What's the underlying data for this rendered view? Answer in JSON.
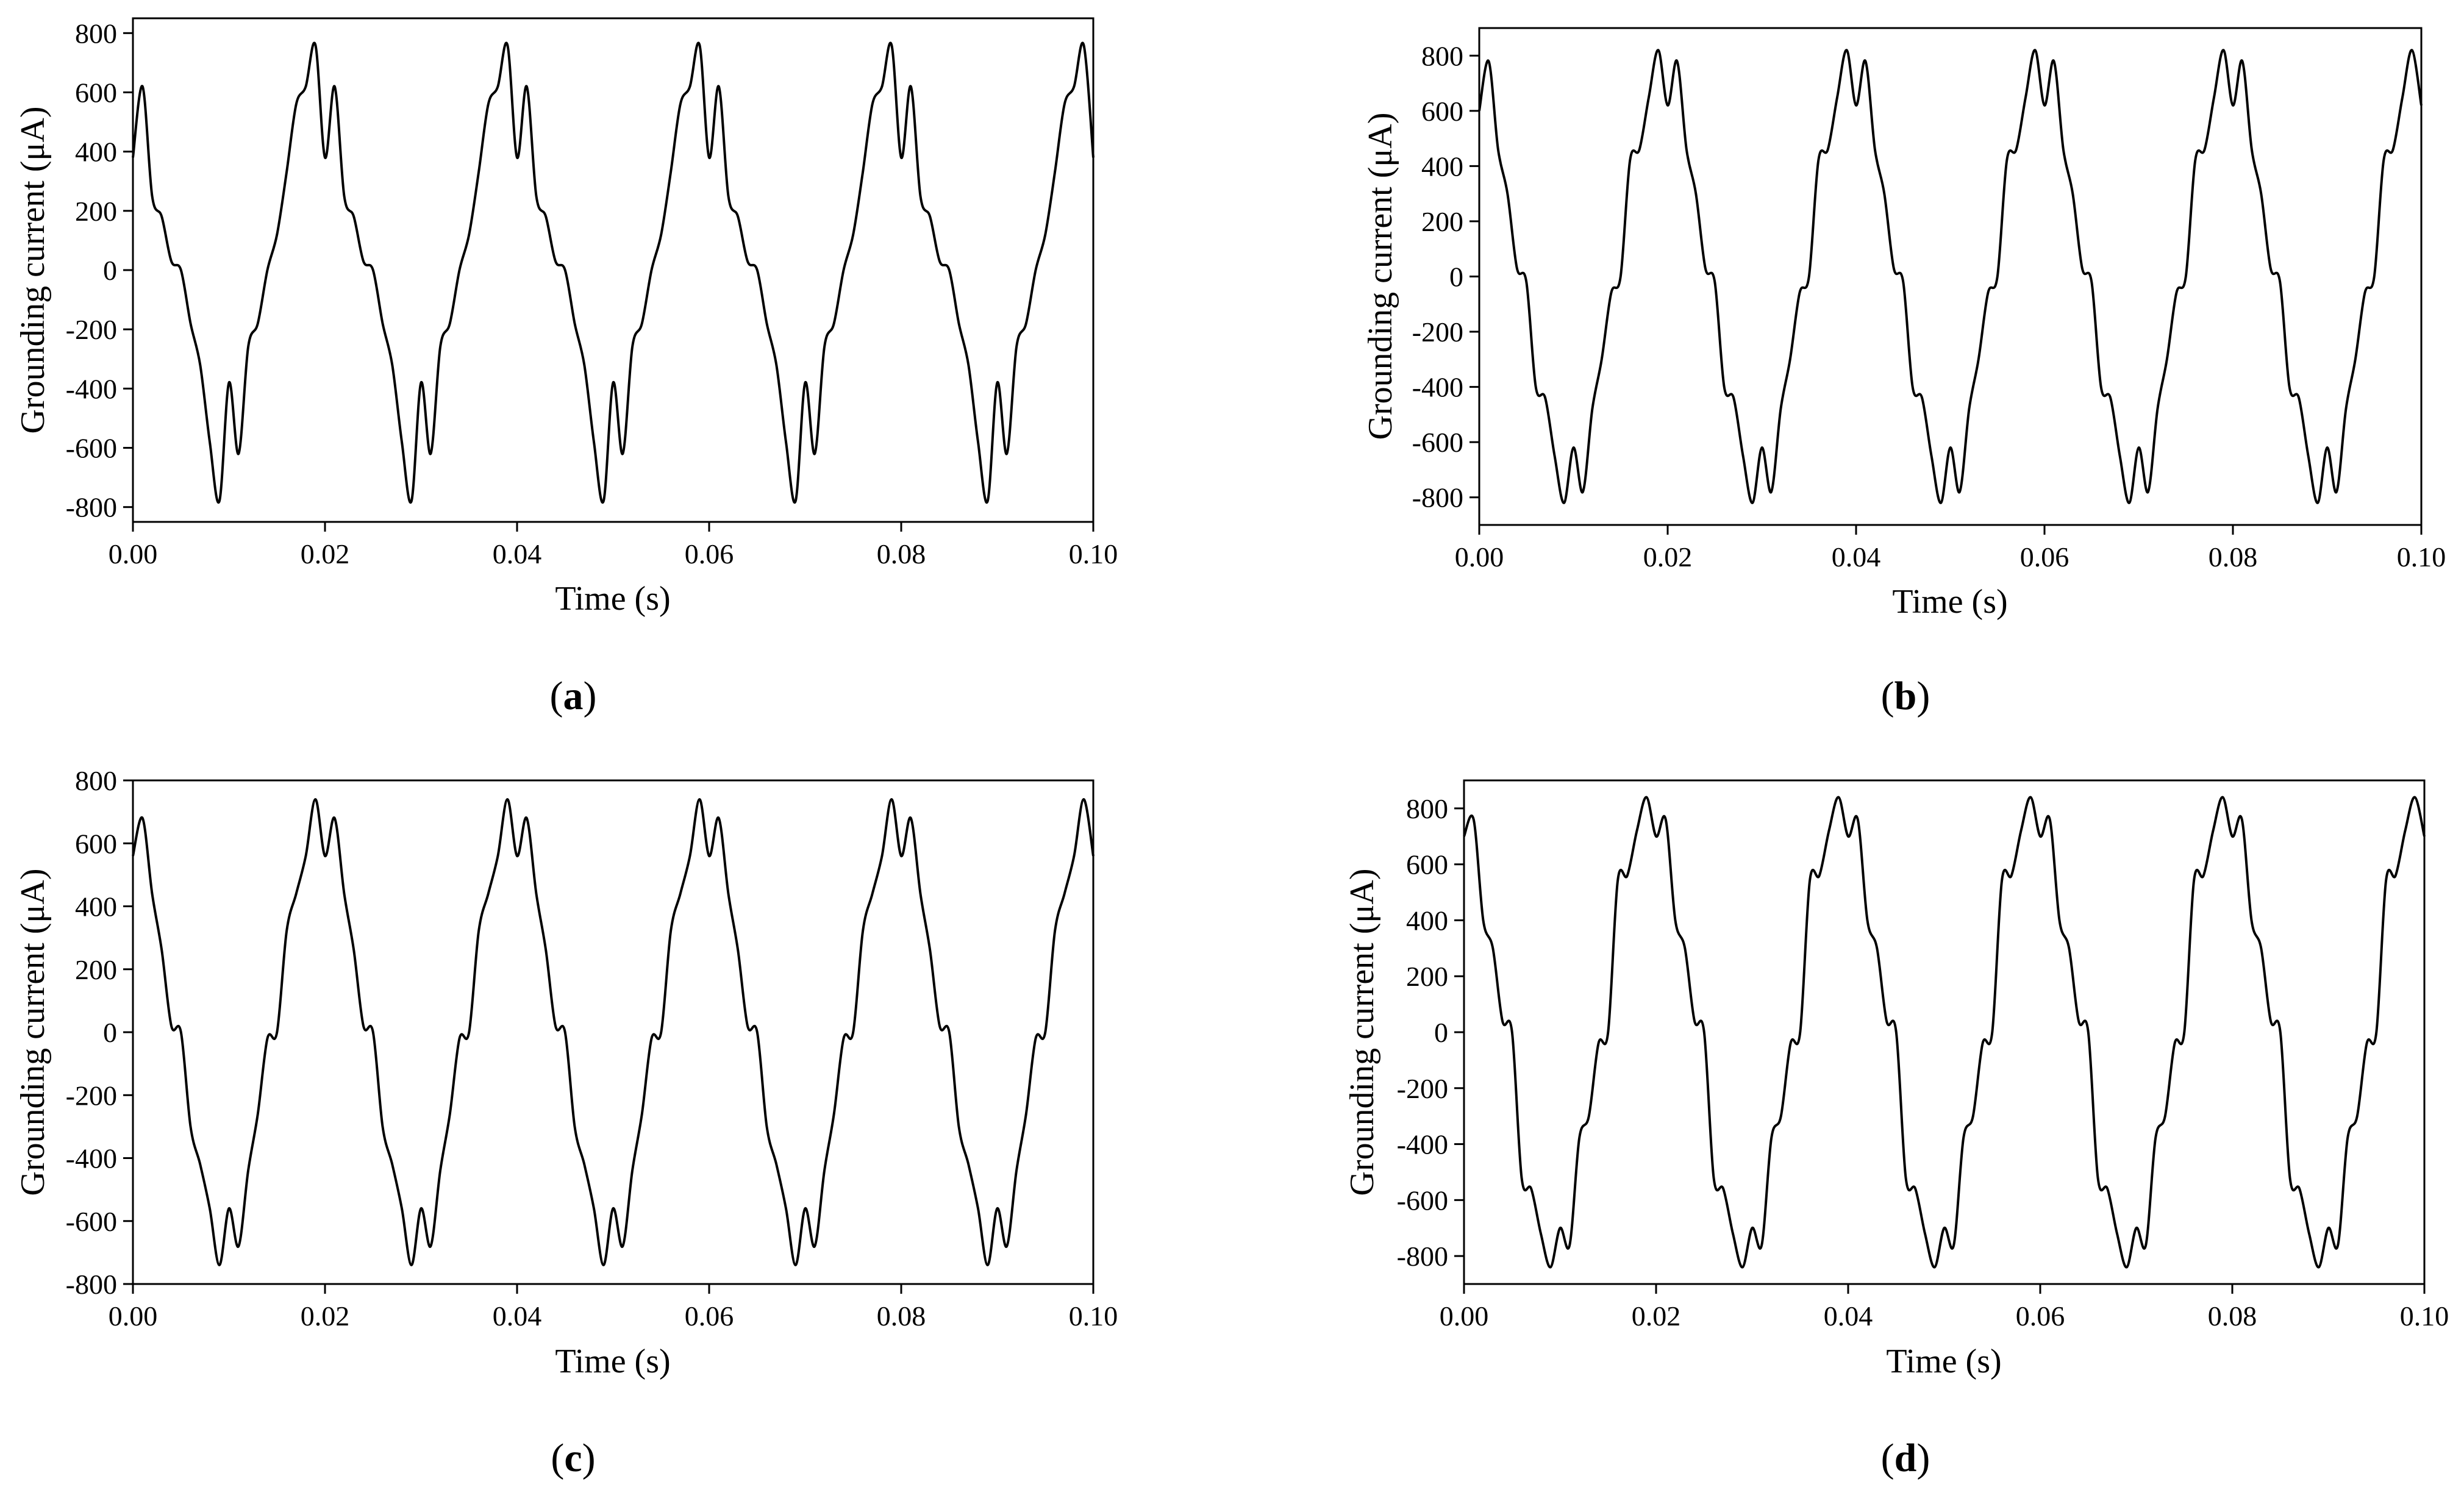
{
  "figure": {
    "panel_labels": [
      {
        "open": "(",
        "letter": "a",
        "close": ")"
      },
      {
        "open": "(",
        "letter": "b",
        "close": ")"
      },
      {
        "open": "(",
        "letter": "c",
        "close": ")"
      },
      {
        "open": "(",
        "letter": "d",
        "close": ")"
      }
    ]
  },
  "chart_data": [
    {
      "type": "line",
      "panel": "a",
      "xlabel": "Time (s)",
      "ylabel": "Grounding current (μA)",
      "xlim": [
        0,
        0.1
      ],
      "ylim": [
        -850,
        850
      ],
      "xticks": [
        "0.00",
        "0.02",
        "0.04",
        "0.06",
        "0.08",
        "0.10"
      ],
      "yticks": [
        "-800",
        "-600",
        "-400",
        "-200",
        "0",
        "200",
        "400",
        "600",
        "800"
      ],
      "grid": false,
      "legend": "none",
      "line_color": "#000000",
      "series": [
        {
          "name": "",
          "x": [
            0.0,
            0.001,
            0.002,
            0.003,
            0.004,
            0.005,
            0.006,
            0.007,
            0.008,
            0.009,
            0.01,
            0.011,
            0.012,
            0.013,
            0.014,
            0.015,
            0.016,
            0.017,
            0.018,
            0.019,
            0.02
          ],
          "y": [
            380,
            620,
            250,
            180,
            30,
            0,
            -180,
            -320,
            -580,
            -780,
            -380,
            -620,
            -260,
            -180,
            0,
            120,
            330,
            560,
            620,
            760,
            380
          ],
          "periodic": true,
          "period": 0.02,
          "harmonics": "50 Hz fundamental with high-frequency ripple near peaks"
        }
      ]
    },
    {
      "type": "line",
      "panel": "b",
      "xlabel": "Time (s)",
      "ylabel": "Grounding current (μA)",
      "xlim": [
        0,
        0.1
      ],
      "ylim": [
        -900,
        900
      ],
      "xticks": [
        "0.00",
        "0.02",
        "0.04",
        "0.06",
        "0.08",
        "0.10"
      ],
      "yticks": [
        "-800",
        "-600",
        "-400",
        "-200",
        "0",
        "200",
        "400",
        "600",
        "800"
      ],
      "grid": false,
      "legend": "none",
      "line_color": "#000000",
      "series": [
        {
          "name": "",
          "x": [
            0.0,
            0.001,
            0.002,
            0.003,
            0.004,
            0.005,
            0.006,
            0.007,
            0.008,
            0.009,
            0.01,
            0.011,
            0.012,
            0.013,
            0.014,
            0.015,
            0.016,
            0.017,
            0.018,
            0.019,
            0.02
          ],
          "y": [
            600,
            780,
            460,
            300,
            30,
            -20,
            -400,
            -440,
            -650,
            -820,
            -620,
            -780,
            -480,
            -300,
            -60,
            0,
            420,
            460,
            650,
            820,
            620
          ],
          "periodic": true,
          "period": 0.02,
          "harmonics": "50 Hz fundamental with ripple near peaks"
        }
      ]
    },
    {
      "type": "line",
      "panel": "c",
      "xlabel": "Time (s)",
      "ylabel": "Grounding current (μA)",
      "xlim": [
        0,
        0.1
      ],
      "ylim": [
        -800,
        800
      ],
      "xticks": [
        "0.00",
        "0.02",
        "0.04",
        "0.06",
        "0.08",
        "0.10"
      ],
      "yticks": [
        "-800",
        "-600",
        "-400",
        "-200",
        "0",
        "200",
        "400",
        "600",
        "800"
      ],
      "grid": false,
      "legend": "none",
      "line_color": "#000000",
      "series": [
        {
          "name": "",
          "x": [
            0.0,
            0.001,
            0.002,
            0.003,
            0.004,
            0.005,
            0.006,
            0.007,
            0.008,
            0.009,
            0.01,
            0.011,
            0.012,
            0.013,
            0.014,
            0.015,
            0.016,
            0.017,
            0.018,
            0.019,
            0.02
          ],
          "y": [
            560,
            680,
            440,
            260,
            20,
            0,
            -300,
            -420,
            -560,
            -740,
            -560,
            -680,
            -440,
            -260,
            -20,
            0,
            320,
            440,
            560,
            740,
            560
          ],
          "periodic": true,
          "period": 0.02,
          "harmonics": "50 Hz fundamental with ripple near peaks"
        }
      ]
    },
    {
      "type": "line",
      "panel": "d",
      "xlabel": "Time (s)",
      "ylabel": "Grounding current (μA)",
      "xlim": [
        0,
        0.1
      ],
      "ylim": [
        -900,
        900
      ],
      "xticks": [
        "0.00",
        "0.02",
        "0.04",
        "0.06",
        "0.08",
        "0.10"
      ],
      "yticks": [
        "-800",
        "-600",
        "-400",
        "-200",
        "0",
        "200",
        "400",
        "600",
        "800"
      ],
      "grid": false,
      "legend": "none",
      "line_color": "#000000",
      "series": [
        {
          "name": "",
          "x": [
            0.0,
            0.001,
            0.002,
            0.003,
            0.004,
            0.005,
            0.006,
            0.007,
            0.008,
            0.009,
            0.01,
            0.011,
            0.012,
            0.013,
            0.014,
            0.015,
            0.016,
            0.017,
            0.018,
            0.019,
            0.02
          ],
          "y": [
            700,
            760,
            400,
            300,
            40,
            0,
            -520,
            -560,
            -720,
            -840,
            -700,
            -760,
            -380,
            -300,
            -40,
            0,
            540,
            560,
            720,
            840,
            700
          ],
          "periodic": true,
          "period": 0.02,
          "harmonics": "50 Hz fundamental with ripple near peaks"
        }
      ]
    }
  ]
}
